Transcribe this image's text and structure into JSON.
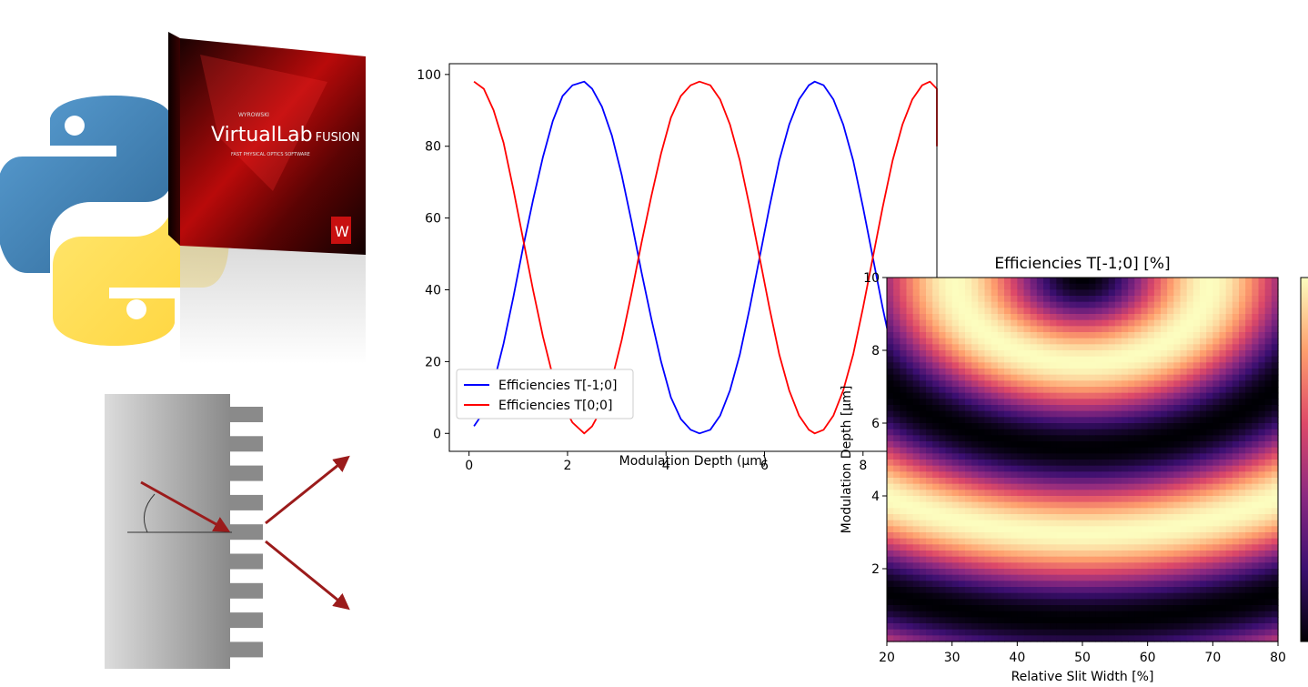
{
  "box": {
    "brand_small": "WYROWSKI",
    "brand_main": "VirtualLab",
    "brand_suffix": "FUSION",
    "tagline": "FAST PHYSICAL OPTICS SOFTWARE",
    "logo_letter": "W"
  },
  "icons": {
    "python_logo": "python-logo-icon",
    "grating": "grating-diagram-icon"
  },
  "chart_data": [
    {
      "type": "line",
      "title": "",
      "xlabel": "Modulation Depth (µm)",
      "ylabel": "",
      "xlim": [
        -0.4,
        9.5
      ],
      "ylim": [
        -5,
        103
      ],
      "xticks": [
        0,
        2,
        4,
        6,
        8
      ],
      "yticks": [
        0,
        20,
        40,
        60,
        80,
        100
      ],
      "legend_position": "lower-left",
      "series": [
        {
          "name": "Efficiencies T[-1;0]",
          "color": "#0000ff",
          "x": [
            0.1,
            0.3,
            0.5,
            0.7,
            0.9,
            1.1,
            1.3,
            1.5,
            1.7,
            1.9,
            2.1,
            2.34,
            2.5,
            2.7,
            2.9,
            3.1,
            3.3,
            3.5,
            3.7,
            3.9,
            4.1,
            4.3,
            4.5,
            4.68,
            4.9,
            5.1,
            5.3,
            5.5,
            5.7,
            5.9,
            6.1,
            6.3,
            6.5,
            6.7,
            6.9,
            7.02,
            7.2,
            7.4,
            7.6,
            7.8,
            8.0,
            8.2,
            8.4,
            8.6,
            8.8,
            9.0,
            9.2,
            9.36
          ],
          "y": [
            2,
            6,
            14,
            25,
            38,
            52,
            65,
            77,
            87,
            94,
            97,
            98,
            96,
            91,
            83,
            72,
            59,
            45,
            32,
            20,
            10,
            4,
            1,
            0,
            1,
            5,
            12,
            22,
            35,
            49,
            63,
            76,
            86,
            93,
            97,
            98,
            97,
            93,
            86,
            76,
            63,
            49,
            35,
            22,
            12,
            5,
            1,
            0
          ]
        },
        {
          "name": "Efficiencies T[0;0]",
          "color": "#ff0000",
          "x": [
            0.1,
            0.3,
            0.5,
            0.7,
            0.9,
            1.1,
            1.3,
            1.5,
            1.7,
            1.9,
            2.1,
            2.34,
            2.5,
            2.7,
            2.9,
            3.1,
            3.3,
            3.5,
            3.7,
            3.9,
            4.1,
            4.3,
            4.5,
            4.68,
            4.9,
            5.1,
            5.3,
            5.5,
            5.7,
            5.9,
            6.1,
            6.3,
            6.5,
            6.7,
            6.9,
            7.02,
            7.2,
            7.4,
            7.6,
            7.8,
            8.0,
            8.2,
            8.4,
            8.6,
            8.8,
            9.0,
            9.2,
            9.36,
            9.6,
            9.8,
            10.0,
            10.2
          ],
          "y": [
            98,
            96,
            90,
            81,
            68,
            54,
            40,
            27,
            16,
            8,
            3,
            0,
            2,
            7,
            15,
            26,
            39,
            53,
            66,
            78,
            88,
            94,
            97,
            98,
            97,
            93,
            86,
            76,
            63,
            49,
            35,
            22,
            12,
            5,
            1,
            0,
            1,
            5,
            12,
            22,
            35,
            49,
            63,
            76,
            86,
            93,
            97,
            98,
            96,
            92,
            86,
            80
          ]
        }
      ]
    },
    {
      "type": "heatmap",
      "title": "Efficiencies T[-1;0] [%]",
      "xlabel": "Relative Slit Width [%]",
      "ylabel": "Modulation Depth [µm]",
      "xlim": [
        20,
        80
      ],
      "ylim": [
        0,
        10
      ],
      "xticks": [
        20,
        30,
        40,
        50,
        60,
        70,
        80
      ],
      "yticks": [
        2,
        4,
        6,
        8,
        10
      ],
      "colormap": "magma",
      "colormap_stops": [
        "#000004",
        "#3b0f70",
        "#8c2981",
        "#de4968",
        "#fe9f6d",
        "#fcfdbf"
      ],
      "pattern": "concentric bands centered near (50, 10) with band spacing about 2.35 µm"
    }
  ]
}
